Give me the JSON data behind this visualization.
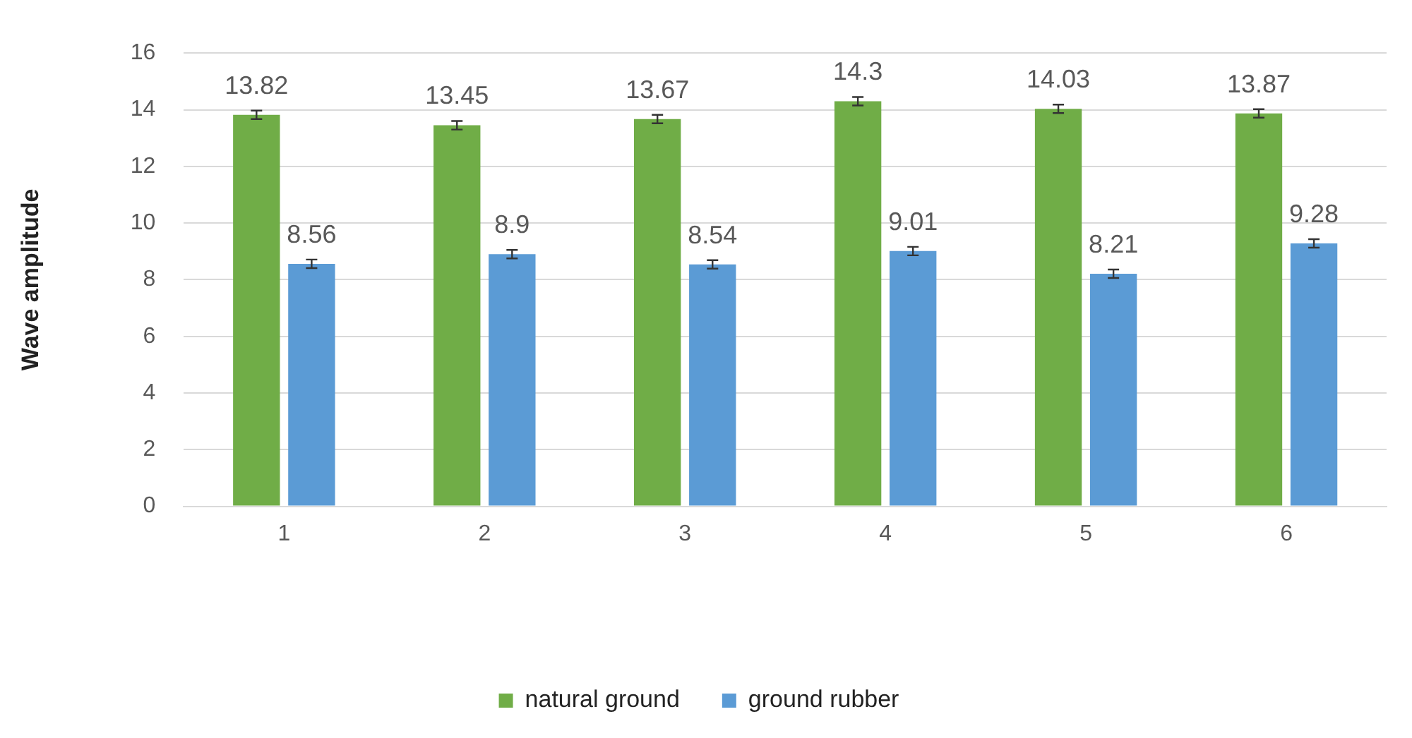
{
  "chart_data": {
    "type": "bar",
    "ylabel": "Wave amplitude",
    "categories": [
      "1",
      "2",
      "3",
      "4",
      "5",
      "6"
    ],
    "series": [
      {
        "name": "natural ground",
        "color": "#70ad47",
        "values": [
          13.82,
          13.45,
          13.67,
          14.3,
          14.03,
          13.87
        ],
        "errors": [
          0.15,
          0.15,
          0.15,
          0.15,
          0.15,
          0.15
        ]
      },
      {
        "name": "ground rubber",
        "color": "#5b9bd5",
        "values": [
          8.56,
          8.9,
          8.54,
          9.01,
          8.21,
          9.28
        ],
        "errors": [
          0.15,
          0.15,
          0.15,
          0.15,
          0.15,
          0.15
        ]
      }
    ],
    "ylim": [
      0,
      16
    ],
    "yticks": [
      0,
      2,
      4,
      6,
      8,
      10,
      12,
      14,
      16
    ],
    "grid": "y",
    "legend": "bottom",
    "data_labels": true
  }
}
